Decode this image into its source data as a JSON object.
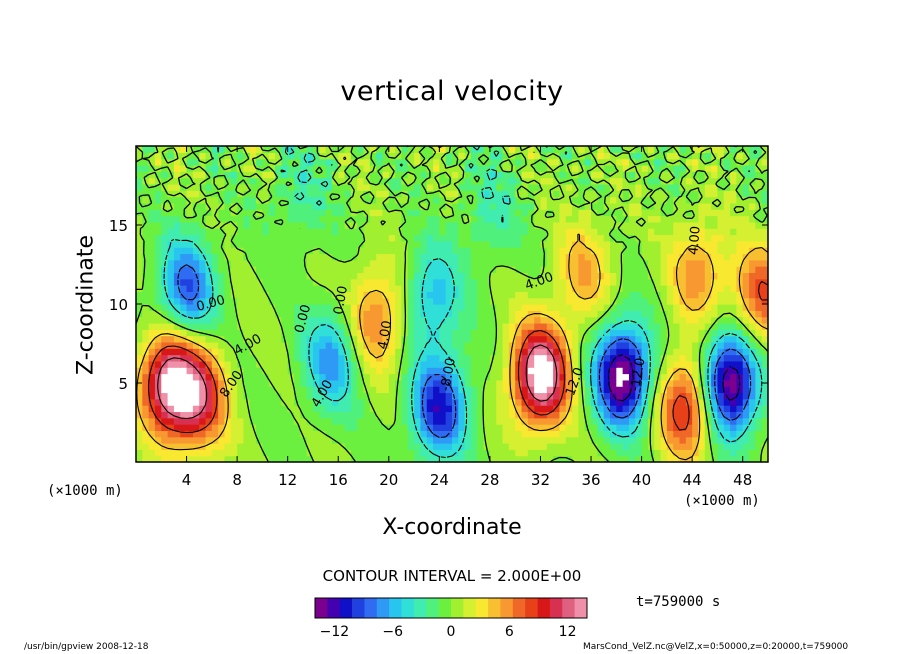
{
  "chart_data": {
    "type": "heatmap",
    "title": "vertical velocity",
    "xlabel": "X-coordinate",
    "ylabel": "Z-coordinate",
    "x_unit": "(×1000 m)",
    "xlim": [
      0,
      50
    ],
    "ylim": [
      0,
      20
    ],
    "x_ticks": [
      4,
      8,
      12,
      16,
      20,
      24,
      28,
      32,
      36,
      40,
      44,
      48
    ],
    "y_ticks": [
      5,
      10,
      15
    ],
    "contour_interval_label": "CONTOUR INTERVAL = 2.000E+00",
    "colorbar": {
      "range": [
        -14,
        14
      ],
      "ticks": [
        -12,
        -6,
        0,
        6,
        12
      ],
      "colors": [
        "#7a0090",
        "#4400b0",
        "#1010c8",
        "#2040e0",
        "#2f6cf2",
        "#2f9af5",
        "#28c6ee",
        "#30e0d8",
        "#40ecb0",
        "#50f07c",
        "#6cf040",
        "#a0f030",
        "#d4f030",
        "#f8e830",
        "#f8c030",
        "#f89830",
        "#f06828",
        "#e84018",
        "#d81818",
        "#d83050",
        "#e06080",
        "#f090a8"
      ]
    },
    "contour_labels": [
      "0.00",
      "4.00",
      "8.00",
      "12.0",
      "-4.00",
      "-8.00",
      "-12.0"
    ],
    "features": [
      {
        "x": 2.6,
        "z": 5.0,
        "w": 14.0
      },
      {
        "x": 5.0,
        "z": 4.0,
        "w": 10.0
      },
      {
        "x": 19.0,
        "z": 9.0,
        "w": 7.0
      },
      {
        "x": 32.0,
        "z": 5.5,
        "w": 16.0
      },
      {
        "x": 43.5,
        "z": 3.5,
        "w": 10.0
      },
      {
        "x": 44.5,
        "z": 12.0,
        "w": 6.0
      },
      {
        "x": 35.5,
        "z": 12.0,
        "w": 5.0
      },
      {
        "x": 49.5,
        "z": 10.5,
        "w": 8.0
      },
      {
        "x": 15.5,
        "z": 6.5,
        "w": -7.0
      },
      {
        "x": 24.0,
        "z": 3.5,
        "w": -11.0
      },
      {
        "x": 23.5,
        "z": 10.5,
        "w": -6.0
      },
      {
        "x": 38.5,
        "z": 5.5,
        "w": -15.0
      },
      {
        "x": 47.0,
        "z": 5.0,
        "w": -15.0
      },
      {
        "x": 4.0,
        "z": 11.0,
        "w": -9.0
      },
      {
        "x": 13.0,
        "z": 17.0,
        "w": -3.0
      },
      {
        "x": 28.0,
        "z": 16.0,
        "w": -3.0
      }
    ]
  },
  "time_label": "t=759000 s",
  "footer_left": "/usr/bin/gpview  2008-12-18",
  "footer_right": "MarsCond_VelZ.nc@VelZ,x=0:50000,z=0:20000,t=759000"
}
